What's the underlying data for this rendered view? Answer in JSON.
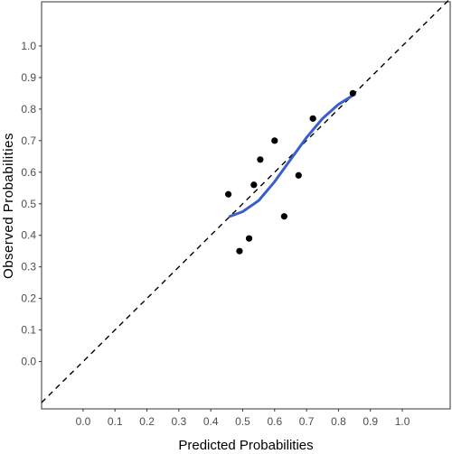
{
  "chart_data": {
    "type": "scatter",
    "title": "",
    "xlabel": "Predicted Probabilities",
    "ylabel": "Observed Probabilities",
    "xlim": [
      -0.13,
      1.15
    ],
    "ylim": [
      -0.15,
      1.14
    ],
    "x_ticks": [
      "0.0",
      "0.1",
      "0.2",
      "0.3",
      "0.4",
      "0.5",
      "0.6",
      "0.7",
      "0.8",
      "0.9",
      "1.0"
    ],
    "y_ticks": [
      "0.0",
      "0.1",
      "0.2",
      "0.3",
      "0.4",
      "0.5",
      "0.6",
      "0.7",
      "0.8",
      "0.9",
      "1.0"
    ],
    "grid": false,
    "points": [
      {
        "x": 0.455,
        "y": 0.53
      },
      {
        "x": 0.49,
        "y": 0.35
      },
      {
        "x": 0.52,
        "y": 0.39
      },
      {
        "x": 0.535,
        "y": 0.56
      },
      {
        "x": 0.555,
        "y": 0.64
      },
      {
        "x": 0.6,
        "y": 0.7
      },
      {
        "x": 0.63,
        "y": 0.46
      },
      {
        "x": 0.675,
        "y": 0.59
      },
      {
        "x": 0.72,
        "y": 0.77
      },
      {
        "x": 0.845,
        "y": 0.85
      }
    ],
    "smooth_curve": [
      {
        "x": 0.46,
        "y": 0.46
      },
      {
        "x": 0.5,
        "y": 0.475
      },
      {
        "x": 0.55,
        "y": 0.51
      },
      {
        "x": 0.6,
        "y": 0.57
      },
      {
        "x": 0.65,
        "y": 0.64
      },
      {
        "x": 0.7,
        "y": 0.71
      },
      {
        "x": 0.75,
        "y": 0.77
      },
      {
        "x": 0.8,
        "y": 0.815
      },
      {
        "x": 0.84,
        "y": 0.84
      }
    ],
    "reference_line": {
      "from": [
        -0.13,
        -0.13
      ],
      "to": [
        1.15,
        1.15
      ]
    },
    "colors": {
      "points": "#000000",
      "curve": "#3a5fcd",
      "reference": "#000000",
      "panel_border": "#333333"
    }
  }
}
